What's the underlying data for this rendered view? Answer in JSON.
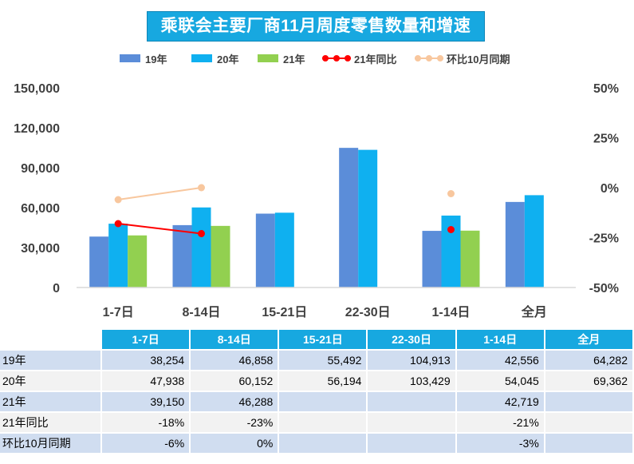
{
  "title": "乘联会主要厂商11月周度零售数量和增速",
  "legend": [
    {
      "label": "19年",
      "color": "#5B8DD9",
      "kind": "bar"
    },
    {
      "label": "20年",
      "color": "#0FB0F0",
      "kind": "bar"
    },
    {
      "label": "21年",
      "color": "#92D050",
      "kind": "bar"
    },
    {
      "label": "21年同比",
      "color": "#FF0000",
      "kind": "line"
    },
    {
      "label": "环比10月同期",
      "color": "#F8C79E",
      "kind": "line"
    }
  ],
  "chart_data": {
    "type": "bar",
    "categories": [
      "1-7日",
      "8-14日",
      "15-21日",
      "22-30日",
      "1-14日",
      "全月"
    ],
    "series": [
      {
        "name": "19年",
        "axis": "left",
        "values": [
          38254,
          46858,
          55492,
          104913,
          42556,
          64282
        ]
      },
      {
        "name": "20年",
        "axis": "left",
        "values": [
          47938,
          60152,
          56194,
          103429,
          54045,
          69362
        ]
      },
      {
        "name": "21年",
        "axis": "left",
        "values": [
          39150,
          46288,
          null,
          null,
          42719,
          null
        ]
      },
      {
        "name": "21年同比",
        "type": "line",
        "axis": "right",
        "values": [
          -18,
          -23,
          null,
          null,
          -21,
          null
        ]
      },
      {
        "name": "环比10月同期",
        "type": "line",
        "axis": "right",
        "values": [
          -6,
          0,
          null,
          null,
          -3,
          null
        ]
      }
    ],
    "y_left": {
      "ticks": [
        "0",
        "30,000",
        "60,000",
        "90,000",
        "120,000",
        "150,000"
      ],
      "range": [
        0,
        150000
      ]
    },
    "y_right": {
      "ticks": [
        "-50%",
        "-25%",
        "0%",
        "25%",
        "50%"
      ],
      "range": [
        -50,
        50
      ]
    },
    "grid": false,
    "legend_position": "top"
  },
  "table": {
    "headers": [
      "1-7日",
      "8-14日",
      "15-21日",
      "22-30日",
      "1-14日",
      "全月"
    ],
    "rows": [
      {
        "label": "19年",
        "cells": [
          "38,254",
          "46,858",
          "55,492",
          "104,913",
          "42,556",
          "64,282"
        ]
      },
      {
        "label": "20年",
        "cells": [
          "47,938",
          "60,152",
          "56,194",
          "103,429",
          "54,045",
          "69,362"
        ]
      },
      {
        "label": "21年",
        "cells": [
          "39,150",
          "46,288",
          "",
          "",
          "42,719",
          ""
        ]
      },
      {
        "label": "21年同比",
        "cells": [
          "-18%",
          "-23%",
          "",
          "",
          "-21%",
          ""
        ]
      },
      {
        "label": "环比10月同期",
        "cells": [
          "-6%",
          "0%",
          "",
          "",
          "-3%",
          ""
        ]
      }
    ]
  }
}
